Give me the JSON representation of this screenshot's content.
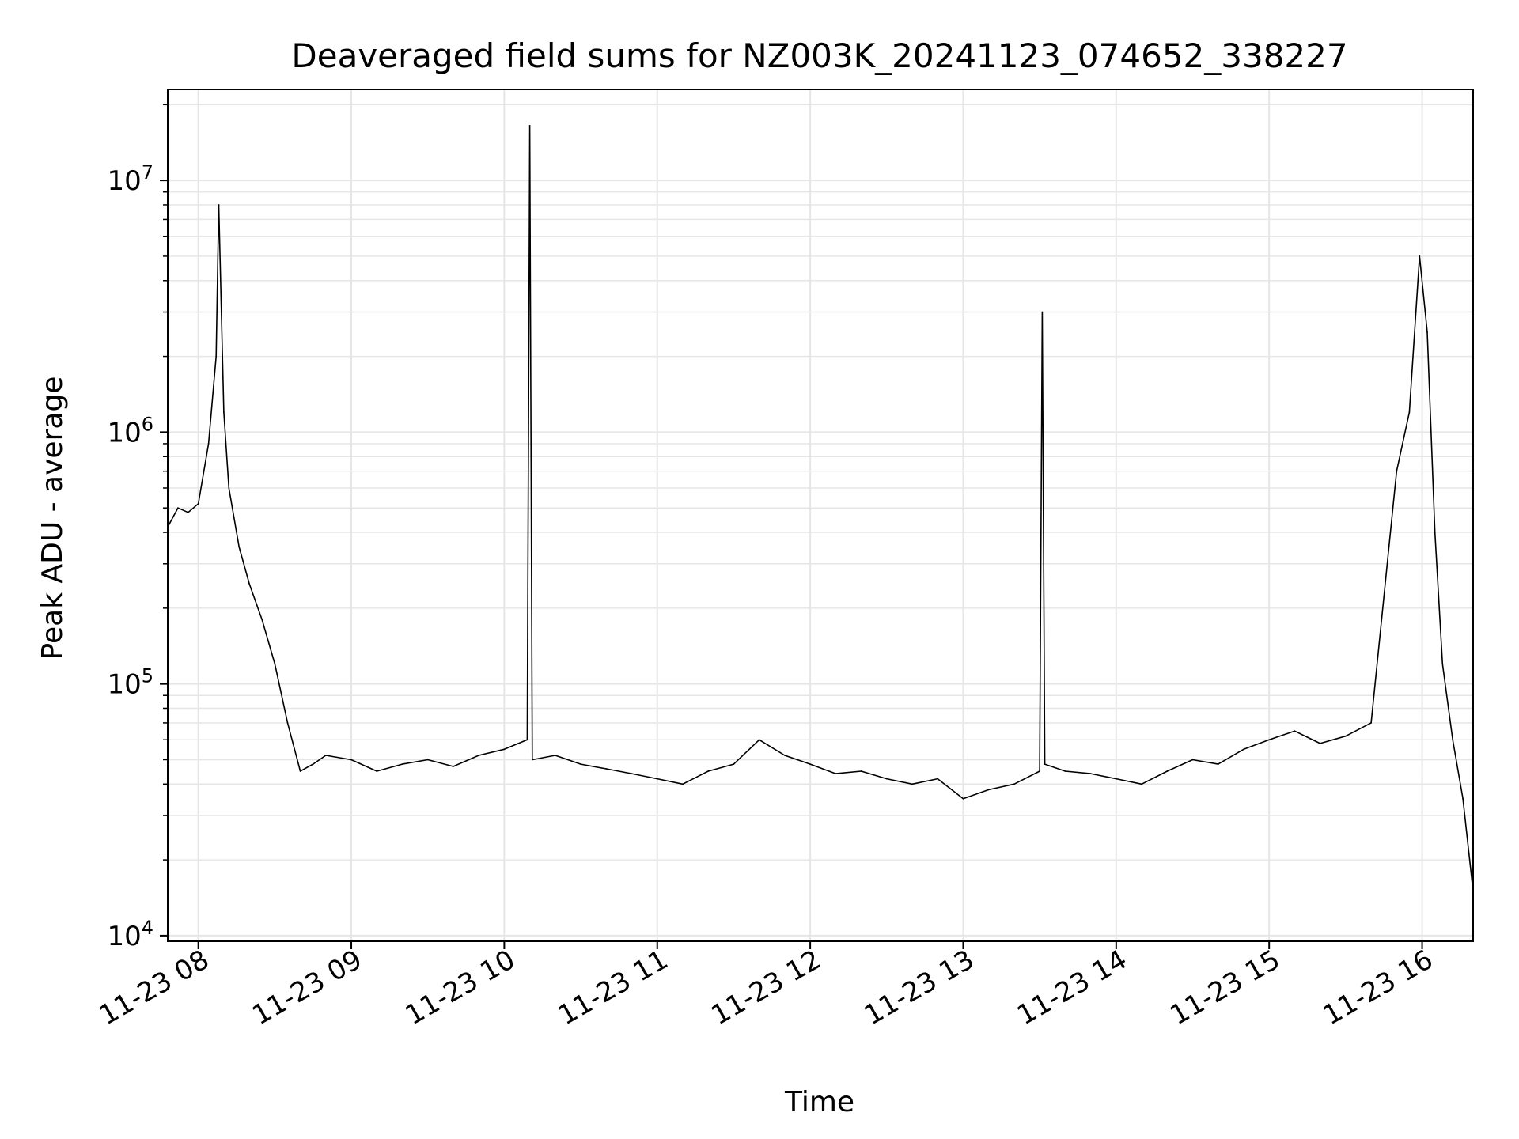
{
  "chart_data": {
    "type": "line",
    "title": "Deaveraged field sums for NZ003K_20241123_074652_338227",
    "xlabel": "Time",
    "ylabel": "Peak ADU - average",
    "yscale": "log",
    "ylim": [
      9500,
      23000000
    ],
    "xlim": [
      "2024-11-23 07:48",
      "2024-11-23 16:20"
    ],
    "grid": true,
    "line_color": "#000000",
    "grid_color": "#e6e6e6",
    "x_ticks": [
      {
        "label": "11-23 08",
        "time": "2024-11-23 08:00"
      },
      {
        "label": "11-23 09",
        "time": "2024-11-23 09:00"
      },
      {
        "label": "11-23 10",
        "time": "2024-11-23 10:00"
      },
      {
        "label": "11-23 11",
        "time": "2024-11-23 11:00"
      },
      {
        "label": "11-23 12",
        "time": "2024-11-23 12:00"
      },
      {
        "label": "11-23 13",
        "time": "2024-11-23 13:00"
      },
      {
        "label": "11-23 14",
        "time": "2024-11-23 14:00"
      },
      {
        "label": "11-23 15",
        "time": "2024-11-23 15:00"
      },
      {
        "label": "11-23 16",
        "time": "2024-11-23 16:00"
      }
    ],
    "y_ticks": [
      {
        "mantissa": "10",
        "exponent": "4",
        "value": 10000
      },
      {
        "mantissa": "10",
        "exponent": "5",
        "value": 100000
      },
      {
        "mantissa": "10",
        "exponent": "6",
        "value": 1000000
      },
      {
        "mantissa": "10",
        "exponent": "7",
        "value": 10000000
      }
    ],
    "series": [
      {
        "x": [
          "2024-11-23 07:48",
          "2024-11-23 07:52",
          "2024-11-23 07:56",
          "2024-11-23 08:00",
          "2024-11-23 08:04",
          "2024-11-23 08:07",
          "2024-11-23 08:08",
          "2024-11-23 08:10",
          "2024-11-23 08:12",
          "2024-11-23 08:16",
          "2024-11-23 08:20",
          "2024-11-23 08:25",
          "2024-11-23 08:30",
          "2024-11-23 08:35",
          "2024-11-23 08:40",
          "2024-11-23 08:45",
          "2024-11-23 08:50",
          "2024-11-23 09:00",
          "2024-11-23 09:10",
          "2024-11-23 09:20",
          "2024-11-23 09:30",
          "2024-11-23 09:40",
          "2024-11-23 09:50",
          "2024-11-23 10:00",
          "2024-11-23 10:09",
          "2024-11-23 10:10",
          "2024-11-23 10:11",
          "2024-11-23 10:20",
          "2024-11-23 10:30",
          "2024-11-23 10:40",
          "2024-11-23 10:50",
          "2024-11-23 11:00",
          "2024-11-23 11:10",
          "2024-11-23 11:20",
          "2024-11-23 11:30",
          "2024-11-23 11:40",
          "2024-11-23 11:50",
          "2024-11-23 12:00",
          "2024-11-23 12:10",
          "2024-11-23 12:20",
          "2024-11-23 12:30",
          "2024-11-23 12:40",
          "2024-11-23 12:50",
          "2024-11-23 13:00",
          "2024-11-23 13:10",
          "2024-11-23 13:20",
          "2024-11-23 13:30",
          "2024-11-23 13:31",
          "2024-11-23 13:32",
          "2024-11-23 13:40",
          "2024-11-23 13:50",
          "2024-11-23 14:00",
          "2024-11-23 14:10",
          "2024-11-23 14:20",
          "2024-11-23 14:30",
          "2024-11-23 14:40",
          "2024-11-23 14:50",
          "2024-11-23 15:00",
          "2024-11-23 15:10",
          "2024-11-23 15:20",
          "2024-11-23 15:30",
          "2024-11-23 15:40",
          "2024-11-23 15:50",
          "2024-11-23 15:55",
          "2024-11-23 15:59",
          "2024-11-23 16:02",
          "2024-11-23 16:05",
          "2024-11-23 16:08",
          "2024-11-23 16:12",
          "2024-11-23 16:16",
          "2024-11-23 16:20"
        ],
        "y": [
          420000,
          500000,
          480000,
          520000,
          900000,
          2000000,
          8000000,
          1200000,
          600000,
          350000,
          250000,
          180000,
          120000,
          70000,
          45000,
          48000,
          52000,
          50000,
          45000,
          48000,
          50000,
          47000,
          52000,
          55000,
          60000,
          16500000,
          50000,
          52000,
          48000,
          46000,
          44000,
          42000,
          40000,
          45000,
          48000,
          60000,
          52000,
          48000,
          44000,
          45000,
          42000,
          40000,
          42000,
          35000,
          38000,
          40000,
          45000,
          3000000,
          48000,
          45000,
          44000,
          42000,
          40000,
          45000,
          50000,
          48000,
          55000,
          60000,
          65000,
          58000,
          62000,
          70000,
          700000,
          1200000,
          5000000,
          2500000,
          400000,
          120000,
          60000,
          35000,
          15000
        ]
      }
    ]
  }
}
